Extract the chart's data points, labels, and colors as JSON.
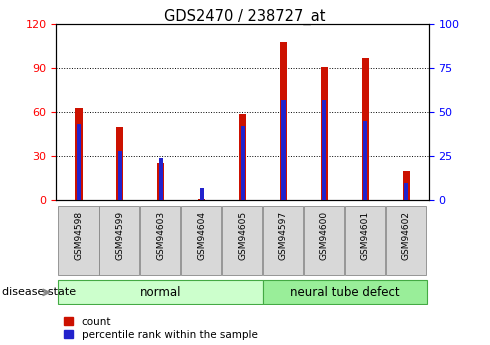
{
  "title": "GDS2470 / 238727_at",
  "samples": [
    "GSM94598",
    "GSM94599",
    "GSM94603",
    "GSM94604",
    "GSM94605",
    "GSM94597",
    "GSM94600",
    "GSM94601",
    "GSM94602"
  ],
  "count_values": [
    63,
    50,
    25,
    1,
    59,
    108,
    91,
    97,
    20
  ],
  "percentile_values": [
    43,
    28,
    24,
    7,
    42,
    57,
    57,
    45,
    10
  ],
  "left_ylim": [
    0,
    120
  ],
  "right_ylim": [
    0,
    100
  ],
  "left_yticks": [
    0,
    30,
    60,
    90,
    120
  ],
  "right_yticks": [
    0,
    25,
    50,
    75,
    100
  ],
  "bar_color_red": "#CC1100",
  "bar_color_blue": "#2222CC",
  "normal_label": "normal",
  "neural_label": "neural tube defect",
  "disease_state_label": "disease state",
  "legend_count": "count",
  "legend_percentile": "percentile rank within the sample",
  "normal_color": "#CCFFCC",
  "neural_color": "#99EE99",
  "red_bar_width": 0.18,
  "blue_bar_width": 0.1,
  "xtick_bg_color": "#D8D8D8",
  "plot_bg_color": "#FFFFFF"
}
